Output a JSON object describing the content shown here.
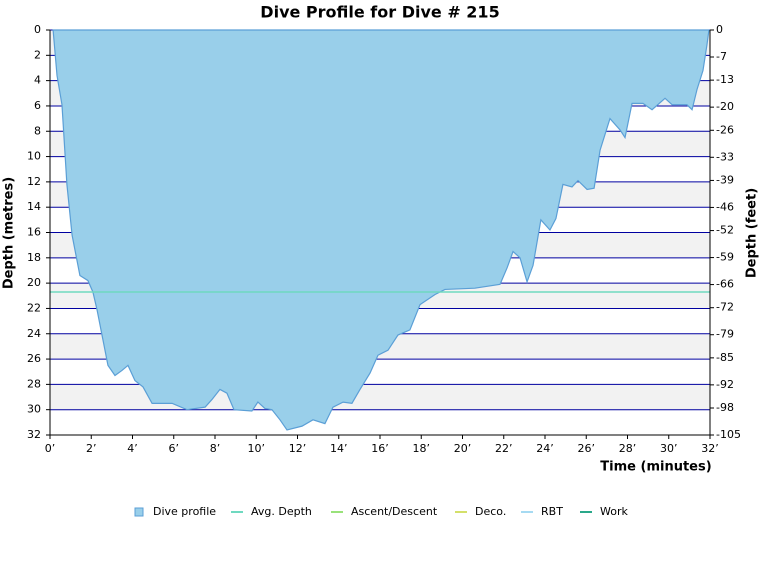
{
  "chart_data": {
    "type": "area",
    "title": "Dive Profile for Dive # 215",
    "xlabel": "Time (minutes)",
    "ylabel": "Depth (metres)",
    "y2label": "Depth (feet)",
    "xlim": [
      0,
      32
    ],
    "xticks": [
      {
        "value": 0,
        "label": "0’"
      },
      {
        "value": 2,
        "label": "2’"
      },
      {
        "value": 4,
        "label": "4’"
      },
      {
        "value": 6,
        "label": "6’"
      },
      {
        "value": 8,
        "label": "8’"
      },
      {
        "value": 10,
        "label": "10’"
      },
      {
        "value": 12,
        "label": "12’"
      },
      {
        "value": 14,
        "label": "14’"
      },
      {
        "value": 16,
        "label": "16’"
      },
      {
        "value": 18,
        "label": "18’"
      },
      {
        "value": 20,
        "label": "20’"
      },
      {
        "value": 22,
        "label": "22’"
      },
      {
        "value": 24,
        "label": "24’"
      },
      {
        "value": 26,
        "label": "26’"
      },
      {
        "value": 28,
        "label": "28’"
      },
      {
        "value": 30,
        "label": "30’"
      },
      {
        "value": 32,
        "label": "32’"
      }
    ],
    "ylim": [
      0,
      32
    ],
    "yticks": [
      0,
      2,
      4,
      6,
      8,
      10,
      12,
      14,
      16,
      18,
      20,
      22,
      24,
      26,
      28,
      30,
      32
    ],
    "y2lim": [
      0,
      -105
    ],
    "y2ticks": [
      0,
      -7,
      -13,
      -20,
      -26,
      -33,
      -39,
      -46,
      -52,
      -59,
      -66,
      -72,
      -79,
      -85,
      -92,
      -98,
      -105
    ],
    "grid": true,
    "legend": "bottom",
    "series": [
      {
        "name": "Dive profile",
        "color": "#99cfea",
        "x": [
          0.15,
          0.34,
          0.58,
          0.82,
          1.07,
          1.45,
          1.84,
          2.08,
          2.28,
          2.57,
          2.81,
          3.15,
          3.49,
          3.78,
          4.12,
          4.51,
          4.95,
          5.92,
          6.64,
          7.52,
          7.85,
          8.24,
          8.58,
          8.92,
          9.79,
          10.08,
          10.42,
          10.76,
          11.15,
          11.49,
          12.22,
          12.75,
          13.33,
          13.72,
          14.21,
          14.64,
          15.03,
          15.52,
          15.9,
          16.39,
          16.87,
          17.45,
          17.94,
          18.67,
          19.15,
          20.6,
          21.82,
          22.16,
          22.45,
          22.79,
          23.13,
          23.42,
          23.8,
          24.24,
          24.53,
          24.87,
          25.31,
          25.6,
          26.04,
          26.38,
          26.67,
          27.15,
          27.64,
          27.88,
          28.22,
          28.75,
          29.19,
          29.82,
          30.16,
          30.88,
          31.13,
          31.37,
          31.66,
          31.85,
          31.95
        ],
        "values": [
          0,
          3.6,
          5.9,
          12.2,
          16.2,
          19.4,
          19.8,
          20.7,
          22.1,
          24.5,
          26.5,
          27.3,
          26.9,
          26.5,
          27.7,
          28.2,
          29.5,
          29.5,
          30,
          29.8,
          29.2,
          28.4,
          28.7,
          30,
          30.1,
          29.4,
          29.9,
          30,
          30.8,
          31.6,
          31.3,
          30.8,
          31.1,
          29.8,
          29.4,
          29.5,
          28.4,
          27.1,
          25.7,
          25.3,
          24.1,
          23.7,
          21.7,
          20.9,
          20.5,
          20.4,
          20.1,
          18.8,
          17.5,
          18,
          19.9,
          18.6,
          15,
          15.8,
          14.9,
          12.2,
          12.4,
          11.9,
          12.6,
          12.5,
          9.5,
          7,
          7.9,
          8.5,
          5.8,
          5.8,
          6.3,
          5.4,
          5.9,
          5.9,
          6.3,
          4.7,
          3.2,
          1.2,
          0
        ]
      },
      {
        "name": "Avg. Depth",
        "color": "#6fd9c0",
        "value": 20.7
      },
      {
        "name": "Ascent/Descent",
        "color": "#99e27a"
      },
      {
        "name": "Deco.",
        "color": "#d4e06a"
      },
      {
        "name": "RBT",
        "color": "#a6daf2"
      },
      {
        "name": "Work",
        "color": "#2aa88a"
      }
    ]
  }
}
